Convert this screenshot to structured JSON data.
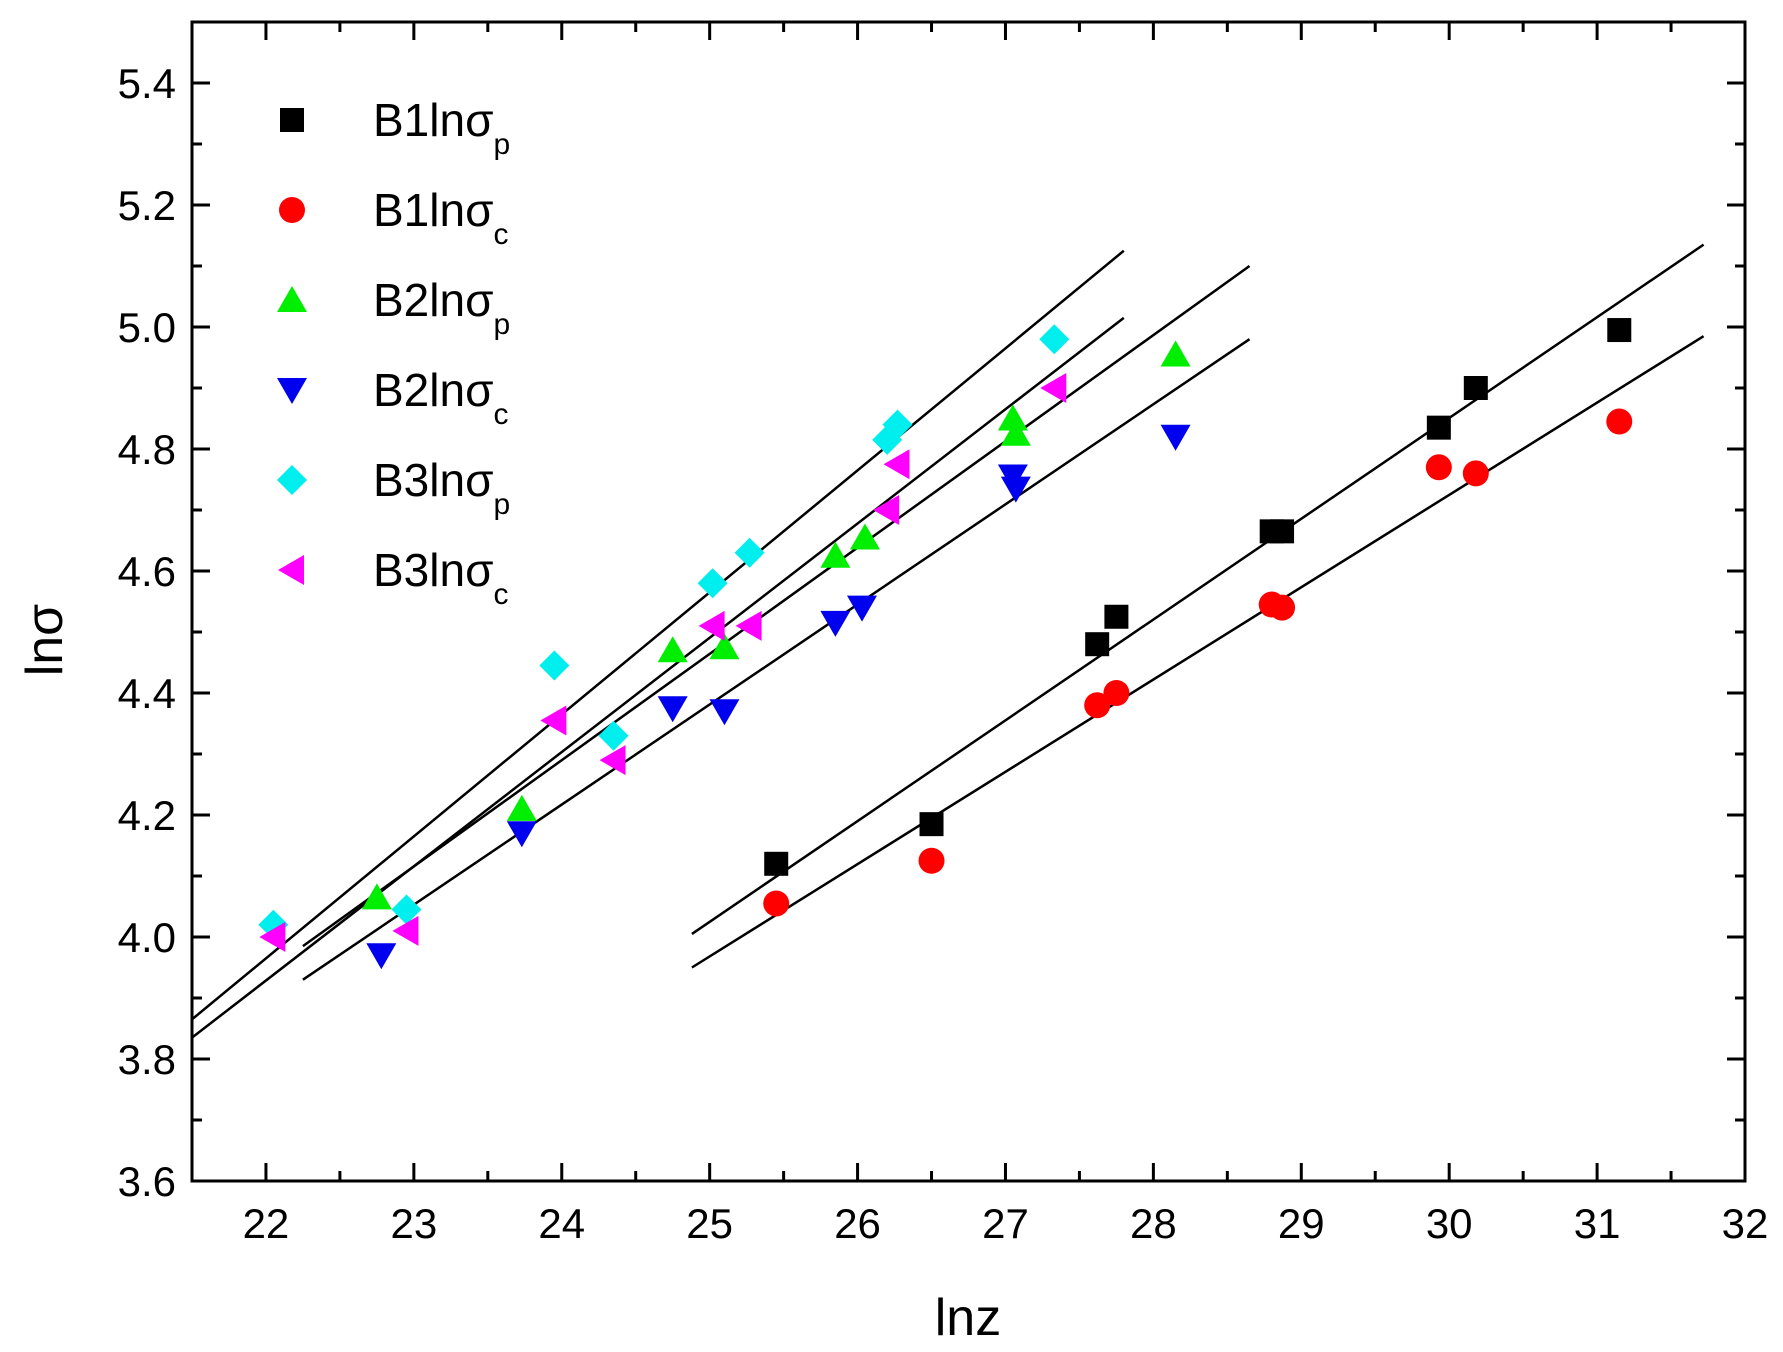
{
  "chart_data": {
    "type": "scatter",
    "title": "",
    "xlabel": "lnz",
    "ylabel": "lnσ",
    "xlim": [
      21.5,
      32
    ],
    "ylim": [
      3.6,
      5.5
    ],
    "x_ticks": [
      "22",
      "23",
      "24",
      "25",
      "26",
      "27",
      "28",
      "29",
      "30",
      "31",
      "32"
    ],
    "y_ticks": [
      "3.6",
      "3.8",
      "4.0",
      "4.2",
      "4.4",
      "4.6",
      "4.8",
      "5.0",
      "5.2",
      "5.4"
    ],
    "legend_position": "top-left",
    "series": [
      {
        "name": "B1lnσp",
        "base": "B1lnσ",
        "sub": "p",
        "marker": "square",
        "color": "#000000",
        "points": [
          [
            25.45,
            4.12
          ],
          [
            26.5,
            4.185
          ],
          [
            27.62,
            4.48
          ],
          [
            27.75,
            4.525
          ],
          [
            28.8,
            4.665
          ],
          [
            28.87,
            4.665
          ],
          [
            29.93,
            4.835
          ],
          [
            30.18,
            4.9
          ],
          [
            31.15,
            4.995
          ]
        ]
      },
      {
        "name": "B1lnσc",
        "base": "B1lnσ",
        "sub": "c",
        "marker": "circle",
        "color": "#ff0000",
        "points": [
          [
            25.45,
            4.055
          ],
          [
            26.5,
            4.125
          ],
          [
            27.62,
            4.38
          ],
          [
            27.75,
            4.4
          ],
          [
            28.8,
            4.545
          ],
          [
            28.87,
            4.54
          ],
          [
            29.93,
            4.77
          ],
          [
            30.18,
            4.76
          ],
          [
            31.15,
            4.845
          ]
        ]
      },
      {
        "name": "B2lnσp",
        "base": "B2lnσ",
        "sub": "p",
        "marker": "triangle-up",
        "color": "#00ee00",
        "points": [
          [
            22.75,
            4.065
          ],
          [
            23.73,
            4.21
          ],
          [
            24.75,
            4.47
          ],
          [
            25.1,
            4.475
          ],
          [
            25.85,
            4.625
          ],
          [
            26.05,
            4.655
          ],
          [
            27.05,
            4.85
          ],
          [
            27.07,
            4.825
          ],
          [
            28.15,
            4.955
          ]
        ]
      },
      {
        "name": "B2lnσc",
        "base": "B2lnσ",
        "sub": "c",
        "marker": "triangle-down",
        "color": "#0000ee",
        "points": [
          [
            22.78,
            3.97
          ],
          [
            23.73,
            4.17
          ],
          [
            24.75,
            4.375
          ],
          [
            25.1,
            4.37
          ],
          [
            25.85,
            4.515
          ],
          [
            26.03,
            4.54
          ],
          [
            27.05,
            4.755
          ],
          [
            27.07,
            4.735
          ],
          [
            28.15,
            4.82
          ]
        ]
      },
      {
        "name": "B3lnσp",
        "base": "B3lnσ",
        "sub": "p",
        "marker": "diamond",
        "color": "#00eeee",
        "points": [
          [
            22.05,
            4.02
          ],
          [
            22.95,
            4.045
          ],
          [
            23.95,
            4.445
          ],
          [
            24.35,
            4.33
          ],
          [
            25.02,
            4.58
          ],
          [
            25.27,
            4.63
          ],
          [
            26.2,
            4.815
          ],
          [
            26.27,
            4.84
          ],
          [
            27.33,
            4.98
          ]
        ]
      },
      {
        "name": "B3lnσc",
        "base": "B3lnσ",
        "sub": "c",
        "marker": "triangle-left",
        "color": "#ff00ff",
        "points": [
          [
            22.05,
            4.0
          ],
          [
            22.95,
            4.01
          ],
          [
            23.95,
            4.355
          ],
          [
            24.35,
            4.29
          ],
          [
            25.02,
            4.51
          ],
          [
            25.27,
            4.51
          ],
          [
            26.2,
            4.7
          ],
          [
            26.27,
            4.775
          ],
          [
            27.33,
            4.9
          ]
        ]
      }
    ],
    "fit_lines": [
      {
        "name": "fit-B1p",
        "x": [
          24.88,
          31.72
        ],
        "y": [
          4.005,
          5.135
        ]
      },
      {
        "name": "fit-B1c",
        "x": [
          24.88,
          31.72
        ],
        "y": [
          3.95,
          4.985
        ]
      },
      {
        "name": "fit-B2p",
        "x": [
          22.25,
          28.65
        ],
        "y": [
          3.985,
          5.1
        ]
      },
      {
        "name": "fit-B2c",
        "x": [
          22.25,
          28.65
        ],
        "y": [
          3.93,
          4.98
        ]
      },
      {
        "name": "fit-B3p",
        "x": [
          21.5,
          27.8
        ],
        "y": [
          3.865,
          5.125
        ]
      },
      {
        "name": "fit-B3c",
        "x": [
          21.5,
          27.8
        ],
        "y": [
          3.835,
          5.015
        ]
      }
    ]
  }
}
